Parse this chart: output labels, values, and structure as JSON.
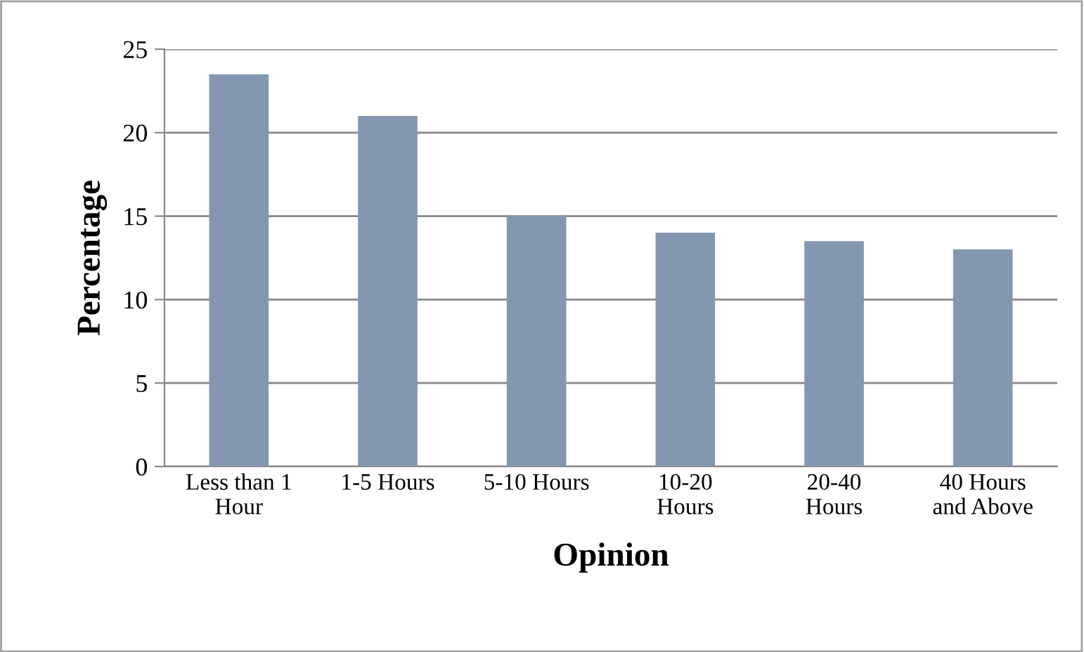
{
  "chart_data": {
    "type": "bar",
    "categories": [
      "Less than 1\nHour",
      "1-5 Hours",
      "5-10 Hours",
      "10-20\nHours",
      "20-40\nHours",
      "40 Hours\nand Above"
    ],
    "values": [
      23.5,
      21,
      15,
      14,
      13.5,
      13
    ],
    "color": "#8497b0",
    "xlabel": "Opinion",
    "ylabel": "Percentage",
    "ylim": [
      0,
      25
    ],
    "yticks": [
      0,
      5,
      10,
      15,
      20,
      25
    ],
    "grid": "y"
  }
}
